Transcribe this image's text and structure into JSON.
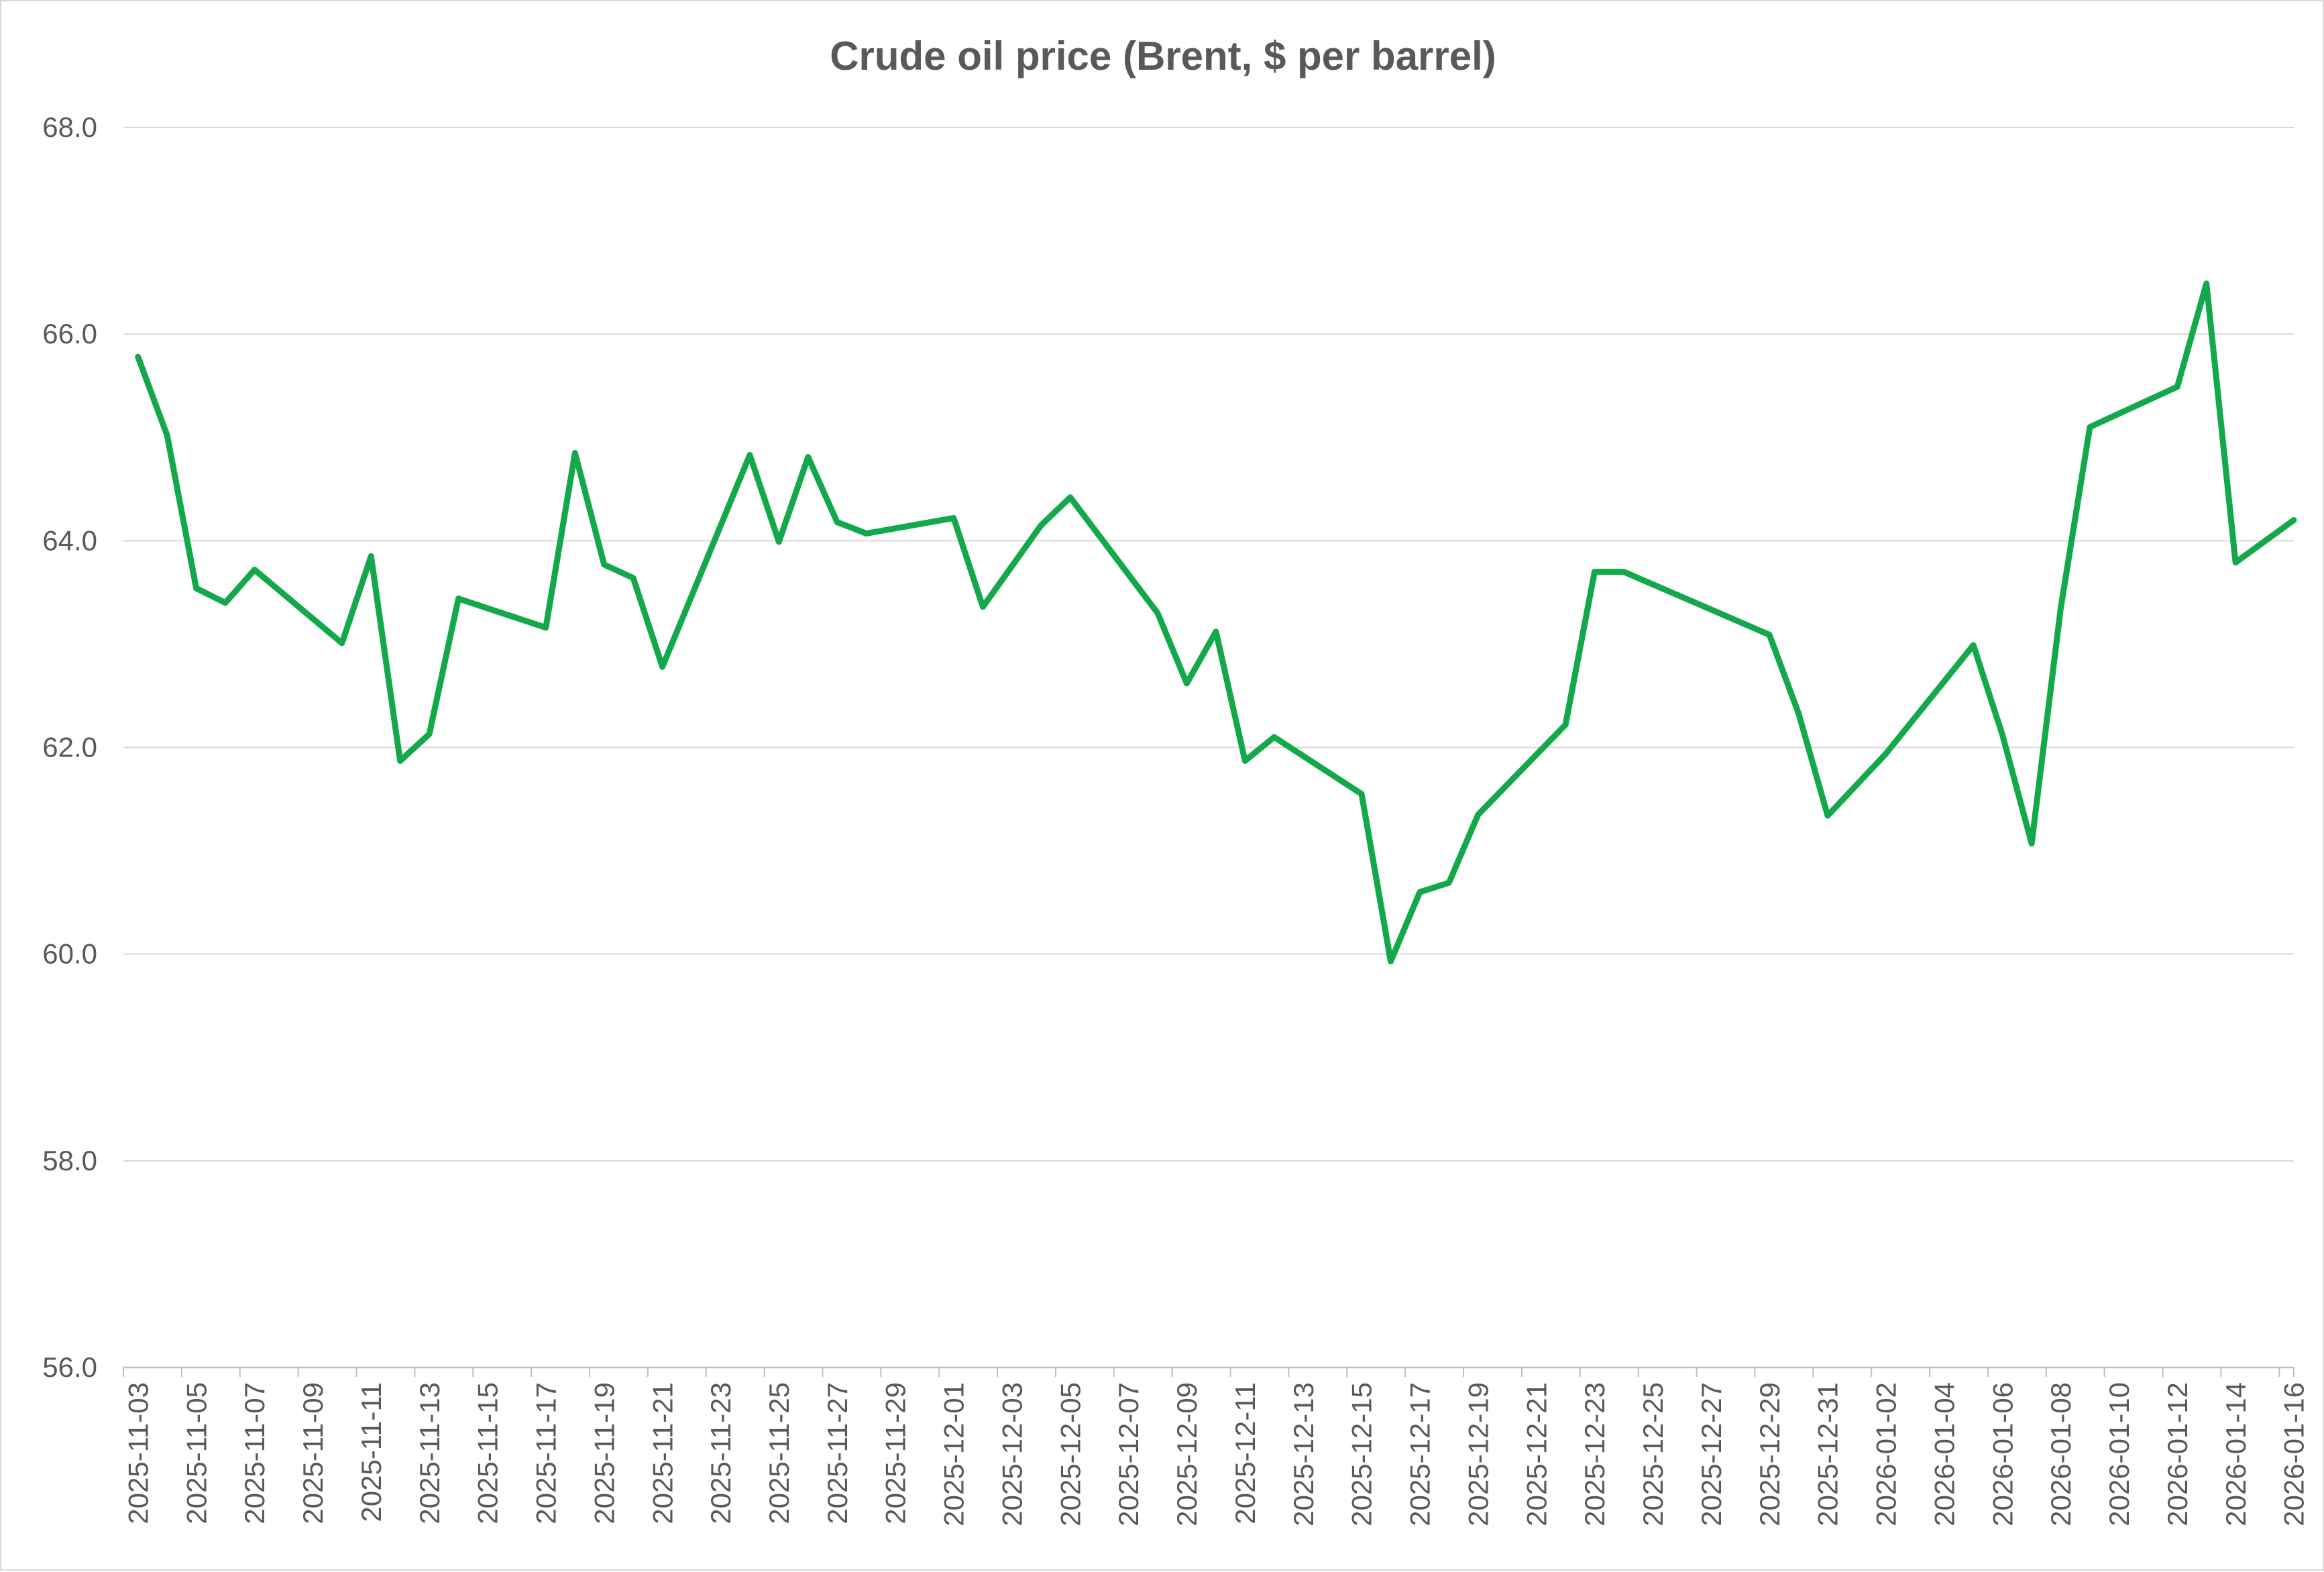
{
  "chart_data": {
    "type": "line",
    "title": "Crude oil price (Brent, $ per barrel)",
    "xlabel": "",
    "ylabel": "",
    "ylim": [
      56,
      68
    ],
    "y_ticks": [
      "56.0",
      "58.0",
      "60.0",
      "62.0",
      "64.0",
      "66.0",
      "68.0"
    ],
    "x_range": [
      "2025-11-03",
      "2026-01-16"
    ],
    "x_tick_labels": [
      "2025-11-03",
      "2025-11-05",
      "2025-11-07",
      "2025-11-09",
      "2025-11-11",
      "2025-11-13",
      "2025-11-15",
      "2025-11-17",
      "2025-11-19",
      "2025-11-21",
      "2025-11-23",
      "2025-11-25",
      "2025-11-27",
      "2025-11-29",
      "2025-12-01",
      "2025-12-03",
      "2025-12-05",
      "2025-12-07",
      "2025-12-09",
      "2025-12-11",
      "2025-12-13",
      "2025-12-15",
      "2025-12-17",
      "2025-12-19",
      "2025-12-21",
      "2025-12-23",
      "2025-12-25",
      "2025-12-27",
      "2025-12-29",
      "2025-12-31",
      "2026-01-02",
      "2026-01-04",
      "2026-01-06",
      "2026-01-08",
      "2026-01-10",
      "2026-01-12",
      "2026-01-14",
      "2026-01-16"
    ],
    "grid": true,
    "legend": "none",
    "series": [
      {
        "color": "#13a84a",
        "points": [
          {
            "x": "2025-11-03",
            "y": 65.78
          },
          {
            "x": "2025-11-04",
            "y": 65.02
          },
          {
            "x": "2025-11-05",
            "y": 63.54
          },
          {
            "x": "2025-11-06",
            "y": 63.4
          },
          {
            "x": "2025-11-07",
            "y": 63.72
          },
          {
            "x": "2025-11-10",
            "y": 63.01
          },
          {
            "x": "2025-11-11",
            "y": 63.85
          },
          {
            "x": "2025-11-12",
            "y": 61.87
          },
          {
            "x": "2025-11-13",
            "y": 62.13
          },
          {
            "x": "2025-11-14",
            "y": 63.44
          },
          {
            "x": "2025-11-17",
            "y": 63.16
          },
          {
            "x": "2025-11-18",
            "y": 64.85
          },
          {
            "x": "2025-11-19",
            "y": 63.77
          },
          {
            "x": "2025-11-20",
            "y": 63.64
          },
          {
            "x": "2025-11-21",
            "y": 62.78
          },
          {
            "x": "2025-11-24",
            "y": 64.83
          },
          {
            "x": "2025-11-25",
            "y": 63.99
          },
          {
            "x": "2025-11-26",
            "y": 64.81
          },
          {
            "x": "2025-11-27",
            "y": 64.18
          },
          {
            "x": "2025-11-28",
            "y": 64.07
          },
          {
            "x": "2025-12-01",
            "y": 64.22
          },
          {
            "x": "2025-12-02",
            "y": 63.36
          },
          {
            "x": "2025-12-04",
            "y": 64.15
          },
          {
            "x": "2025-12-05",
            "y": 64.42
          },
          {
            "x": "2025-12-08",
            "y": 63.3
          },
          {
            "x": "2025-12-09",
            "y": 62.62
          },
          {
            "x": "2025-12-10",
            "y": 63.12
          },
          {
            "x": "2025-12-11",
            "y": 61.87
          },
          {
            "x": "2025-12-12",
            "y": 62.1
          },
          {
            "x": "2025-12-15",
            "y": 61.55
          },
          {
            "x": "2025-12-16",
            "y": 59.93
          },
          {
            "x": "2025-12-17",
            "y": 60.6
          },
          {
            "x": "2025-12-18",
            "y": 60.69
          },
          {
            "x": "2025-12-19",
            "y": 61.35
          },
          {
            "x": "2025-12-22",
            "y": 62.22
          },
          {
            "x": "2025-12-23",
            "y": 63.7
          },
          {
            "x": "2025-12-24",
            "y": 63.7
          },
          {
            "x": "2025-12-29",
            "y": 63.09
          },
          {
            "x": "2025-12-30",
            "y": 62.33
          },
          {
            "x": "2025-12-31",
            "y": 61.34
          },
          {
            "x": "2026-01-02",
            "y": 61.94
          },
          {
            "x": "2026-01-05",
            "y": 62.99
          },
          {
            "x": "2026-01-06",
            "y": 62.12
          },
          {
            "x": "2026-01-07",
            "y": 61.07
          },
          {
            "x": "2026-01-08",
            "y": 63.35
          },
          {
            "x": "2026-01-09",
            "y": 65.1
          },
          {
            "x": "2026-01-12",
            "y": 65.49
          },
          {
            "x": "2026-01-13",
            "y": 66.49
          },
          {
            "x": "2026-01-14",
            "y": 63.79
          },
          {
            "x": "2026-01-16",
            "y": 64.2
          }
        ]
      }
    ]
  }
}
